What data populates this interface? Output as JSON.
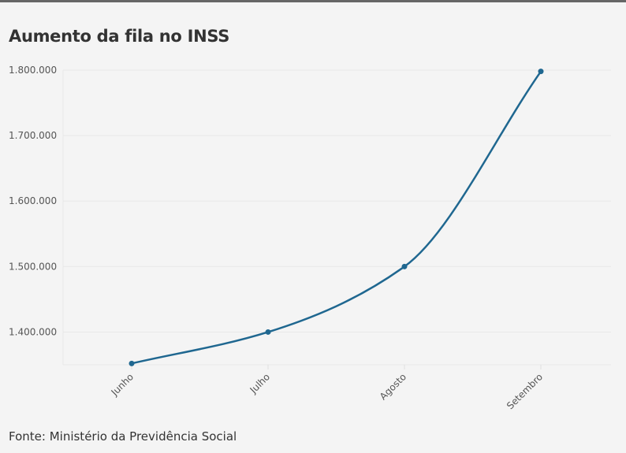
{
  "chart_data": {
    "type": "line",
    "title": "Aumento da fila no INSS",
    "source": "Fonte: Ministério da Previdência Social",
    "categories": [
      "Junho",
      "Julho",
      "Agosto",
      "Setembro"
    ],
    "series": [
      {
        "name": "Fila no INSS",
        "values": [
          1352000,
          1400000,
          1500000,
          1798000
        ]
      }
    ],
    "yticks": [
      1400000,
      1500000,
      1600000,
      1700000,
      1800000
    ],
    "ytick_labels": [
      "1.400.000",
      "1.500.000",
      "1.600.000",
      "1.700.000",
      "1.800.000"
    ],
    "ylim": [
      1350000,
      1800000
    ],
    "xlabel": "",
    "ylabel": "",
    "grid": true,
    "line_color": "#1f6790"
  }
}
